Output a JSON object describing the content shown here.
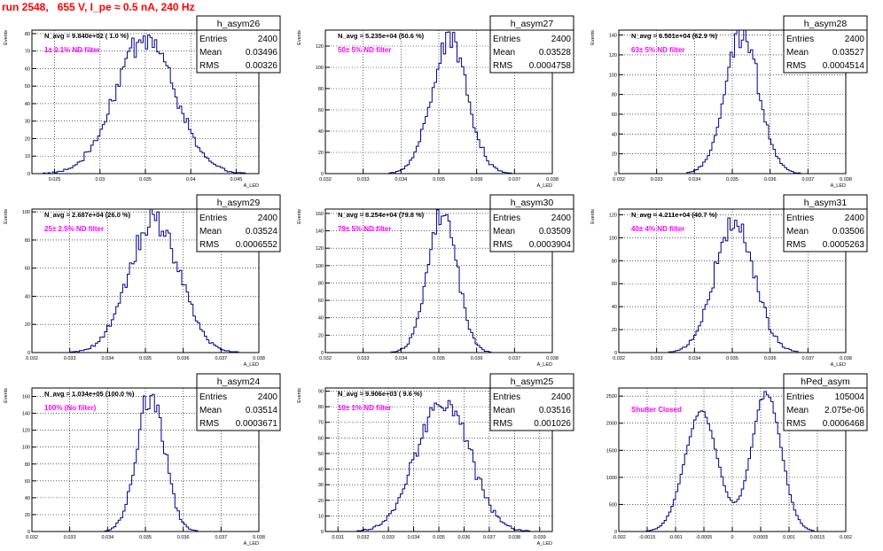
{
  "page": {
    "title": "run 2548,   655 V, I_pe ≈ 0.5 nA, 240 Hz",
    "title_color": "#ff0000",
    "hist_color": "#00008b",
    "filter_color": "#ff00ff"
  },
  "chart_data": [
    {
      "type": "bar",
      "name": "h_asym26",
      "navg": "N_avg = 9.840e+02 ( 1.0 %)",
      "filter": "1± 0.1% ND filter",
      "stats": {
        "entries": "2400",
        "mean": "0.03496",
        "rms": "0.00326"
      },
      "ylabel": "Events",
      "xlabel": "A_LED",
      "xlim": [
        0.0225,
        0.0475
      ],
      "ylim": [
        0,
        82
      ],
      "xticks": [
        "0.025",
        "0.03",
        "0.035",
        "0.04",
        "0.045"
      ],
      "yticks": [
        0,
        10,
        20,
        30,
        40,
        50,
        60,
        70,
        80
      ],
      "ymax": 78,
      "dist": {
        "mean": 0.03496,
        "rms": 0.00326
      },
      "bin_width": 0.00025
    },
    {
      "type": "bar",
      "name": "h_asym27",
      "navg": "N_avg = 5.235e+04 (50.6 %)",
      "filter": "50± 5% ND filter",
      "stats": {
        "entries": "2400",
        "mean": "0.03528",
        "rms": "0.0004758"
      },
      "ylabel": "Events",
      "xlabel": "A_LED",
      "xlim": [
        0.032,
        0.038
      ],
      "ylim": [
        0,
        135
      ],
      "xticks": [
        "0.032",
        "0.033",
        "0.034",
        "0.035",
        "0.036",
        "0.037",
        "0.038"
      ],
      "yticks": [
        0,
        20,
        40,
        60,
        80,
        100,
        120
      ],
      "ymax": 126,
      "dist": {
        "mean": 0.03528,
        "rms": 0.0004758
      },
      "bin_width": 6e-05
    },
    {
      "type": "bar",
      "name": "h_asym28",
      "navg": "N_avg = 6.501e+04 (62.9 %)",
      "filter": "63± 5% ND filter",
      "stats": {
        "entries": "2400",
        "mean": "0.03527",
        "rms": "0.0004514"
      },
      "ylabel": "Events",
      "xlabel": "A_LED",
      "xlim": [
        0.032,
        0.038
      ],
      "ylim": [
        0,
        145
      ],
      "xticks": [
        "0.032",
        "0.033",
        "0.034",
        "0.035",
        "0.036",
        "0.037",
        "0.038"
      ],
      "yticks": [
        0,
        20,
        40,
        60,
        80,
        100,
        120,
        140
      ],
      "ymax": 140,
      "dist": {
        "mean": 0.03527,
        "rms": 0.0004514
      },
      "bin_width": 6e-05
    },
    {
      "type": "bar",
      "name": "h_asym29",
      "navg": "N_avg = 2.687e+04 (26.0 %)",
      "filter": "25± 2.5% ND filter",
      "stats": {
        "entries": "2400",
        "mean": "0.03524",
        "rms": "0.0006552"
      },
      "ylabel": "Events",
      "xlabel": "A_LED",
      "xlim": [
        0.032,
        0.038
      ],
      "ylim": [
        0,
        102
      ],
      "xticks": [
        "0.032",
        "0.033",
        "0.034",
        "0.035",
        "0.036",
        "0.037",
        "0.038"
      ],
      "yticks": [
        0,
        20,
        40,
        60,
        80,
        100
      ],
      "ymax": 96,
      "dist": {
        "mean": 0.03524,
        "rms": 0.0006552
      },
      "bin_width": 6e-05
    },
    {
      "type": "bar",
      "name": "h_asym30",
      "navg": "N_avg = 8.254e+04 (79.8 %)",
      "filter": "79± 5% ND filter",
      "stats": {
        "entries": "2400",
        "mean": "0.03509",
        "rms": "0.0003904"
      },
      "ylabel": "Events",
      "xlabel": "A_LED",
      "xlim": [
        0.032,
        0.038
      ],
      "ylim": [
        0,
        165
      ],
      "xticks": [
        "0.032",
        "0.033",
        "0.034",
        "0.035",
        "0.036",
        "0.037",
        "0.038"
      ],
      "yticks": [
        0,
        20,
        40,
        60,
        80,
        100,
        120,
        140,
        160
      ],
      "ymax": 158,
      "dist": {
        "mean": 0.03509,
        "rms": 0.0003904
      },
      "bin_width": 6e-05
    },
    {
      "type": "bar",
      "name": "h_asym31",
      "navg": "N_avg = 4.211e+04 (40.7 %)",
      "filter": "40± 4% ND filter",
      "stats": {
        "entries": "2400",
        "mean": "0.03506",
        "rms": "0.0005263"
      },
      "ylabel": "Events",
      "xlabel": "A_LED",
      "xlim": [
        0.032,
        0.038
      ],
      "ylim": [
        0,
        125
      ],
      "xticks": [
        "0.032",
        "0.033",
        "0.034",
        "0.035",
        "0.036",
        "0.037",
        "0.038"
      ],
      "yticks": [
        0,
        20,
        40,
        60,
        80,
        100,
        120
      ],
      "ymax": 112,
      "dist": {
        "mean": 0.03506,
        "rms": 0.0005263
      },
      "bin_width": 6e-05
    },
    {
      "type": "bar",
      "name": "h_asym24",
      "navg": "N_avg = 1.034e+05 (100.0 %)",
      "filter": "100% (No filter)",
      "stats": {
        "entries": "2400",
        "mean": "0.03514",
        "rms": "0.0003671"
      },
      "ylabel": "Events",
      "xlabel": "A_LED",
      "xlim": [
        0.032,
        0.038
      ],
      "ylim": [
        0,
        170
      ],
      "xticks": [
        "0.032",
        "0.033",
        "0.034",
        "0.035",
        "0.036",
        "0.037",
        "0.038"
      ],
      "yticks": [
        0,
        20,
        40,
        60,
        80,
        100,
        120,
        140,
        160
      ],
      "ymax": 164,
      "dist": {
        "mean": 0.03514,
        "rms": 0.0003671
      },
      "bin_width": 6e-05
    },
    {
      "type": "bar",
      "name": "h_asym25",
      "navg": "N_avg = 9.906e+03 ( 9.6 %)",
      "filter": "10± 1% ND filter",
      "stats": {
        "entries": "2400",
        "mean": "0.03516",
        "rms": "0.001026"
      },
      "ylabel": "Events",
      "xlabel": "A_LED",
      "xlim": [
        0.0305,
        0.0395
      ],
      "ylim": [
        0,
        92
      ],
      "xticks": [
        "0.031",
        "0.032",
        "0.033",
        "0.034",
        "0.035",
        "0.036",
        "0.037",
        "0.038",
        "0.039"
      ],
      "yticks": [
        0,
        10,
        20,
        30,
        40,
        50,
        60,
        70,
        80,
        90
      ],
      "ymax": 86,
      "dist": {
        "mean": 0.03516,
        "rms": 0.001026
      },
      "bin_width": 9e-05
    },
    {
      "type": "bar",
      "name": "hPed_asym",
      "navg": "",
      "filter": "Shutter Closed",
      "stats": {
        "entries": "105004",
        "mean": "2.075e-06",
        "rms": "0.0006468"
      },
      "ylabel": "",
      "xlabel": "",
      "xlim": [
        -0.002,
        0.002
      ],
      "ylim": [
        0,
        2650
      ],
      "xticks": [
        "-0.002",
        "-0.0015",
        "-0.001",
        "-0.0005",
        "0",
        "0.0005",
        "0.001",
        "0.0015",
        "0.002"
      ],
      "yticks": [
        0,
        500,
        1000,
        1500,
        2000,
        2500
      ],
      "ymax": 2560,
      "dist": {
        "peaks": [
          [
            -0.00055,
            0.00029,
            2200
          ],
          [
            0.0006,
            0.00026,
            2560
          ]
        ]
      },
      "bin_width": 4e-05
    }
  ]
}
